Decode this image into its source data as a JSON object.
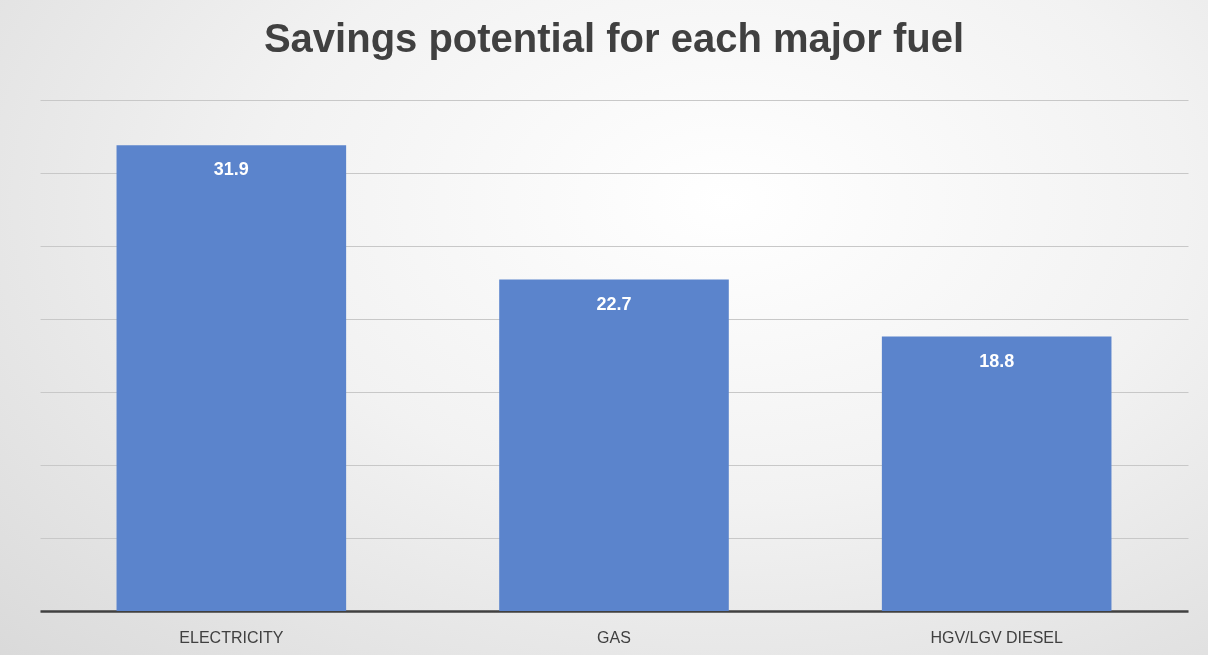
{
  "chart_data": {
    "type": "bar",
    "title": "Savings potential for each major fuel",
    "categories": [
      "ELECTRICITY",
      "GAS",
      "HGV/LGV DIESEL"
    ],
    "values": [
      31.9,
      22.7,
      18.8
    ],
    "color": "#5b84cc",
    "ylim": [
      0,
      35
    ],
    "yticks": [
      {
        "value": 0,
        "label": null
      },
      {
        "value": 5,
        "label": null
      },
      {
        "value": 10,
        "label": null
      },
      {
        "value": 15,
        "label": null
      },
      {
        "value": 20,
        "label": null
      },
      {
        "value": 25,
        "label": null
      },
      {
        "value": 30,
        "label": null
      },
      {
        "value": 35,
        "label": null
      }
    ],
    "grid": "y",
    "tick_labels": "x",
    "data_labels": true
  }
}
